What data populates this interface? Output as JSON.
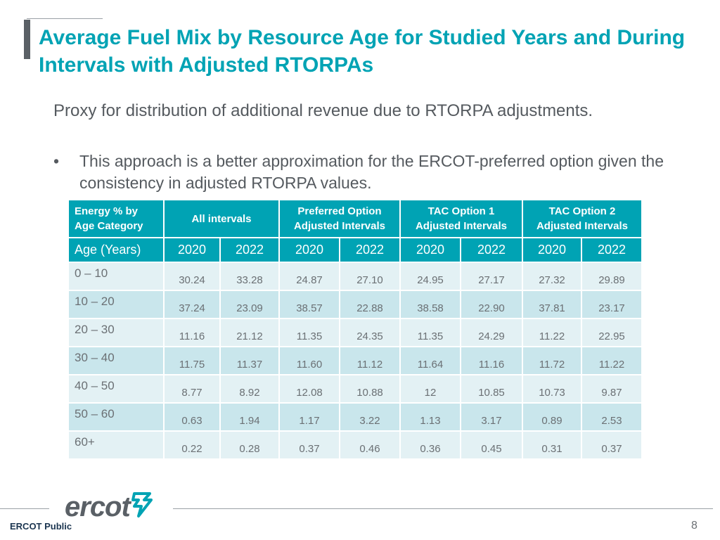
{
  "slide": {
    "title": "Average Fuel Mix by Resource Age for Studied Years and During Intervals with Adjusted RTORPAs",
    "subtitle": "Proxy for distribution of additional revenue due to RTORPA adjustments.",
    "bullet_marker": "•",
    "bullet": "This approach is a better approximation for the ERCOT-preferred option given the consistency in adjusted RTORPA values.",
    "accent_color": "#00a3b4"
  },
  "table": {
    "corner_header": [
      "Energy % by",
      "Age Category"
    ],
    "group_headers": [
      {
        "lines": [
          "All intervals"
        ]
      },
      {
        "lines": [
          "Preferred Option",
          "Adjusted Intervals"
        ]
      },
      {
        "lines": [
          "TAC Option 1",
          "Adjusted Intervals"
        ]
      },
      {
        "lines": [
          "TAC Option 2",
          "Adjusted Intervals"
        ]
      }
    ],
    "year_row_label": "Age (Years)",
    "years": [
      "2020",
      "2022",
      "2020",
      "2022",
      "2020",
      "2022",
      "2020",
      "2022"
    ],
    "rows": [
      {
        "age": "0 – 10",
        "values": [
          "30.24",
          "33.28",
          "24.87",
          "27.10",
          "24.95",
          "27.17",
          "27.32",
          "29.89"
        ]
      },
      {
        "age": "10 – 20",
        "values": [
          "37.24",
          "23.09",
          "38.57",
          "22.88",
          "38.58",
          "22.90",
          "37.81",
          "23.17"
        ]
      },
      {
        "age": "20 – 30",
        "values": [
          "11.16",
          "21.12",
          "11.35",
          "24.35",
          "11.35",
          "24.29",
          "11.22",
          "22.95"
        ]
      },
      {
        "age": "30 – 40",
        "values": [
          "11.75",
          "11.37",
          "11.60",
          "11.12",
          "11.64",
          "11.16",
          "11.72",
          "11.22"
        ]
      },
      {
        "age": "40 – 50",
        "values": [
          "8.77",
          "8.92",
          "12.08",
          "10.88",
          "12",
          "10.85",
          "10.73",
          "9.87"
        ]
      },
      {
        "age": "50 – 60",
        "values": [
          "0.63",
          "1.94",
          "1.17",
          "3.22",
          "1.13",
          "3.17",
          "0.89",
          "2.53"
        ]
      },
      {
        "age": "60+",
        "values": [
          "0.22",
          "0.28",
          "0.37",
          "0.46",
          "0.36",
          "0.45",
          "0.31",
          "0.37"
        ]
      }
    ]
  },
  "footer": {
    "logo_text": "ercot",
    "logo_icon": "ercot-bolt-icon",
    "label": "ERCOT Public",
    "page_number": "8"
  }
}
